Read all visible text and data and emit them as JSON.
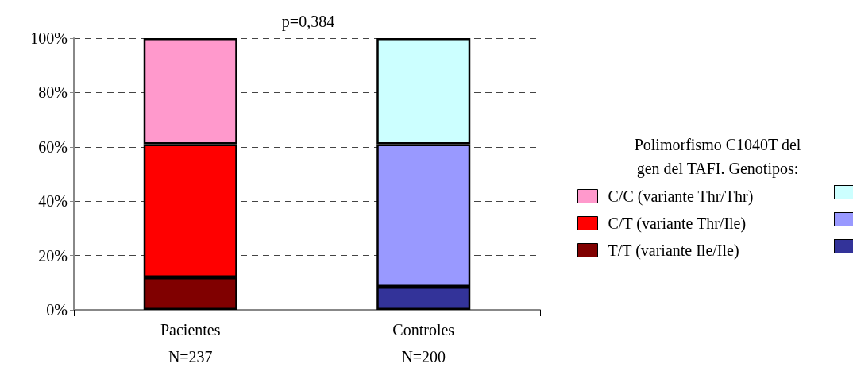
{
  "chart_data": {
    "type": "bar",
    "title": "p=0,384",
    "legend_title": "Polimorfismo C1040T del\ngen del TAFI. Genotipos:",
    "categories": [
      "Pacientes\nN=237",
      "Controles\nN=200"
    ],
    "stacked": true,
    "series": [
      {
        "name": "T/T (variante Ile/Ile)",
        "colors": [
          "#800000",
          "#333399"
        ],
        "values": [
          12,
          8.5
        ]
      },
      {
        "name": "C/T (variante Thr/Ile)",
        "colors": [
          "#ff0000",
          "#9999ff"
        ],
        "values": [
          49,
          52.5
        ]
      },
      {
        "name": "C/C (variante Thr/Thr)",
        "colors": [
          "#ff99cc",
          "#ccffff"
        ],
        "values": [
          39,
          39
        ]
      }
    ],
    "ylim": [
      0,
      100
    ],
    "yticks": [
      {
        "value": 0,
        "label": "0%"
      },
      {
        "value": 20,
        "label": "20%"
      },
      {
        "value": 40,
        "label": "40%"
      },
      {
        "value": 60,
        "label": "60%"
      },
      {
        "value": 80,
        "label": "80%"
      },
      {
        "value": 100,
        "label": "100%"
      }
    ],
    "grid": "y",
    "legend": "right"
  }
}
